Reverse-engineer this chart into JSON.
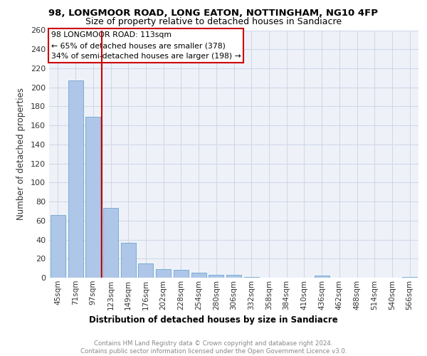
{
  "title1": "98, LONGMOOR ROAD, LONG EATON, NOTTINGHAM, NG10 4FP",
  "title2": "Size of property relative to detached houses in Sandiacre",
  "xlabel": "Distribution of detached houses by size in Sandiacre",
  "ylabel": "Number of detached properties",
  "categories": [
    "45sqm",
    "71sqm",
    "97sqm",
    "123sqm",
    "149sqm",
    "176sqm",
    "202sqm",
    "228sqm",
    "254sqm",
    "280sqm",
    "306sqm",
    "332sqm",
    "358sqm",
    "384sqm",
    "410sqm",
    "436sqm",
    "462sqm",
    "488sqm",
    "514sqm",
    "540sqm",
    "566sqm"
  ],
  "values": [
    66,
    207,
    169,
    73,
    37,
    15,
    9,
    8,
    5,
    3,
    3,
    1,
    0,
    0,
    0,
    2,
    0,
    0,
    0,
    0,
    1
  ],
  "bar_color": "#aec6e8",
  "bar_edge_color": "#7aadd4",
  "grid_color": "#d0d8e8",
  "bg_color": "#eef2f8",
  "annotation_line_color": "#cc0000",
  "annotation_box_text": "98 LONGMOOR ROAD: 113sqm\n← 65% of detached houses are smaller (378)\n34% of semi-detached houses are larger (198) →",
  "annotation_box_color": "#cc0000",
  "footer_text": "Contains HM Land Registry data © Crown copyright and database right 2024.\nContains public sector information licensed under the Open Government Licence v3.0.",
  "ylim": [
    0,
    260
  ],
  "yticks": [
    0,
    20,
    40,
    60,
    80,
    100,
    120,
    140,
    160,
    180,
    200,
    220,
    240,
    260
  ]
}
